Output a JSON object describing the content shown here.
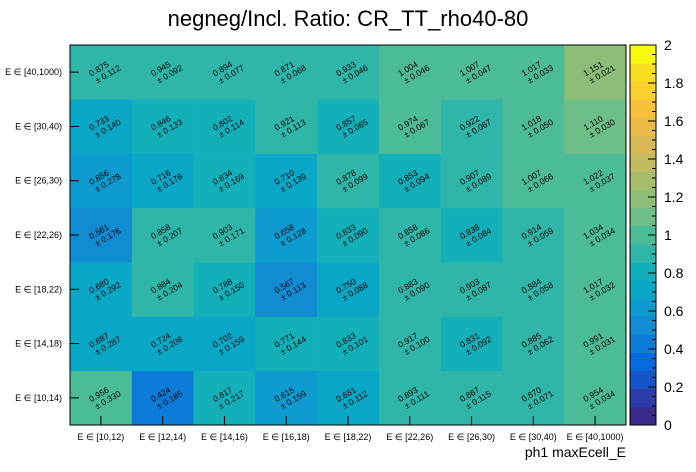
{
  "chart_data": {
    "type": "heatmap",
    "title": "negneg/Incl. Ratio: CR_TT_rho40-80",
    "xlabel": "ph1 maxEcell_E",
    "ylabel": "",
    "x_categories": [
      "E ∈ [10,12)",
      "E ∈ [12,14)",
      "E ∈ [14,16)",
      "E ∈ [16,18)",
      "E ∈ [18,22)",
      "E ∈ [22,26)",
      "E ∈ [26,30)",
      "E ∈ [30,40)",
      "E ∈ [40,1000)"
    ],
    "y_categories": [
      "E ∈ [10,14)",
      "E ∈ [14,18)",
      "E ∈ [18,22)",
      "E ∈ [22,26)",
      "E ∈ [26,30)",
      "E ∈ [30,40)",
      "E ∈ [40,1000)"
    ],
    "zlim": [
      0,
      2
    ],
    "z_ticks": [
      "0",
      "0.2",
      "0.4",
      "0.6",
      "0.8",
      "1",
      "1.2",
      "1.4",
      "1.6",
      "1.8",
      "2"
    ],
    "values": [
      [
        "0.956",
        "0.424",
        "0.817",
        "0.615",
        "0.681",
        "0.893",
        "0.867",
        "0.870",
        "0.954"
      ],
      [
        "0.687",
        "0.724",
        "0.702",
        "0.771",
        "0.833",
        "0.917",
        "0.831",
        "0.885",
        "0.991"
      ],
      [
        "0.680",
        "0.884",
        "0.788",
        "0.567",
        "0.750",
        "0.883",
        "0.903",
        "0.884",
        "1.017"
      ],
      [
        "0.561",
        "0.858",
        "0.903",
        "0.658",
        "0.833",
        "0.858",
        "0.838",
        "0.914",
        "1.034"
      ],
      [
        "0.656",
        "0.716",
        "0.834",
        "0.710",
        "0.878",
        "0.853",
        "0.907",
        "1.007",
        "1.022"
      ],
      [
        "0.733",
        "0.846",
        "0.802",
        "0.921",
        "0.857",
        "0.974",
        "0.922",
        "1.018",
        "1.110"
      ],
      [
        "0.875",
        "0.945",
        "0.894",
        "0.871",
        "0.933",
        "1.004",
        "1.007",
        "1.017",
        "1.151"
      ]
    ],
    "errors": [
      [
        "± 0.330",
        "± 0.185",
        "± 0.217",
        "± 0.159",
        "± 0.112",
        "± 0.111",
        "± 0.115",
        "± 0.071",
        "± 0.034"
      ],
      [
        "± 0.287",
        "± 0.208",
        "± 0.159",
        "± 0.144",
        "± 0.101",
        "± 0.100",
        "± 0.092",
        "± 0.062",
        "± 0.031"
      ],
      [
        "± 0.292",
        "± 0.204",
        "± 0.150",
        "± 0.113",
        "± 0.088",
        "± 0.090",
        "± 0.087",
        "± 0.058",
        "± 0.032"
      ],
      [
        "± 0.176",
        "± 0.207",
        "± 0.171",
        "± 0.128",
        "± 0.090",
        "± 0.086",
        "± 0.084",
        "± 0.059",
        "± 0.034"
      ],
      [
        "± 0.278",
        "± 0.178",
        "± 0.169",
        "± 0.139",
        "± 0.099",
        "± 0.094",
        "± 0.089",
        "± 0.066",
        "± 0.037"
      ],
      [
        "± 0.140",
        "± 0.133",
        "± 0.114",
        "± 0.113",
        "± 0.065",
        "± 0.067",
        "± 0.067",
        "± 0.050",
        "± 0.030"
      ],
      [
        "± 0.112",
        "± 0.092",
        "± 0.077",
        "± 0.068",
        "± 0.046",
        "± 0.046",
        "± 0.047",
        "± 0.033",
        "± 0.021"
      ]
    ],
    "palette": [
      "#352a87",
      "#2b3ca8",
      "#1455c9",
      "#0769e0",
      "#0d7cd8",
      "#118bd1",
      "#0e9bd0",
      "#0ba7c6",
      "#13b0ba",
      "#30b6a9",
      "#4cbb98",
      "#6ebe88",
      "#8cbe78",
      "#a8bd6b",
      "#c3bb5f",
      "#d8b955",
      "#ebba49",
      "#f7c13c",
      "#f9d02e",
      "#f9df21",
      "#f9fb0e"
    ]
  }
}
